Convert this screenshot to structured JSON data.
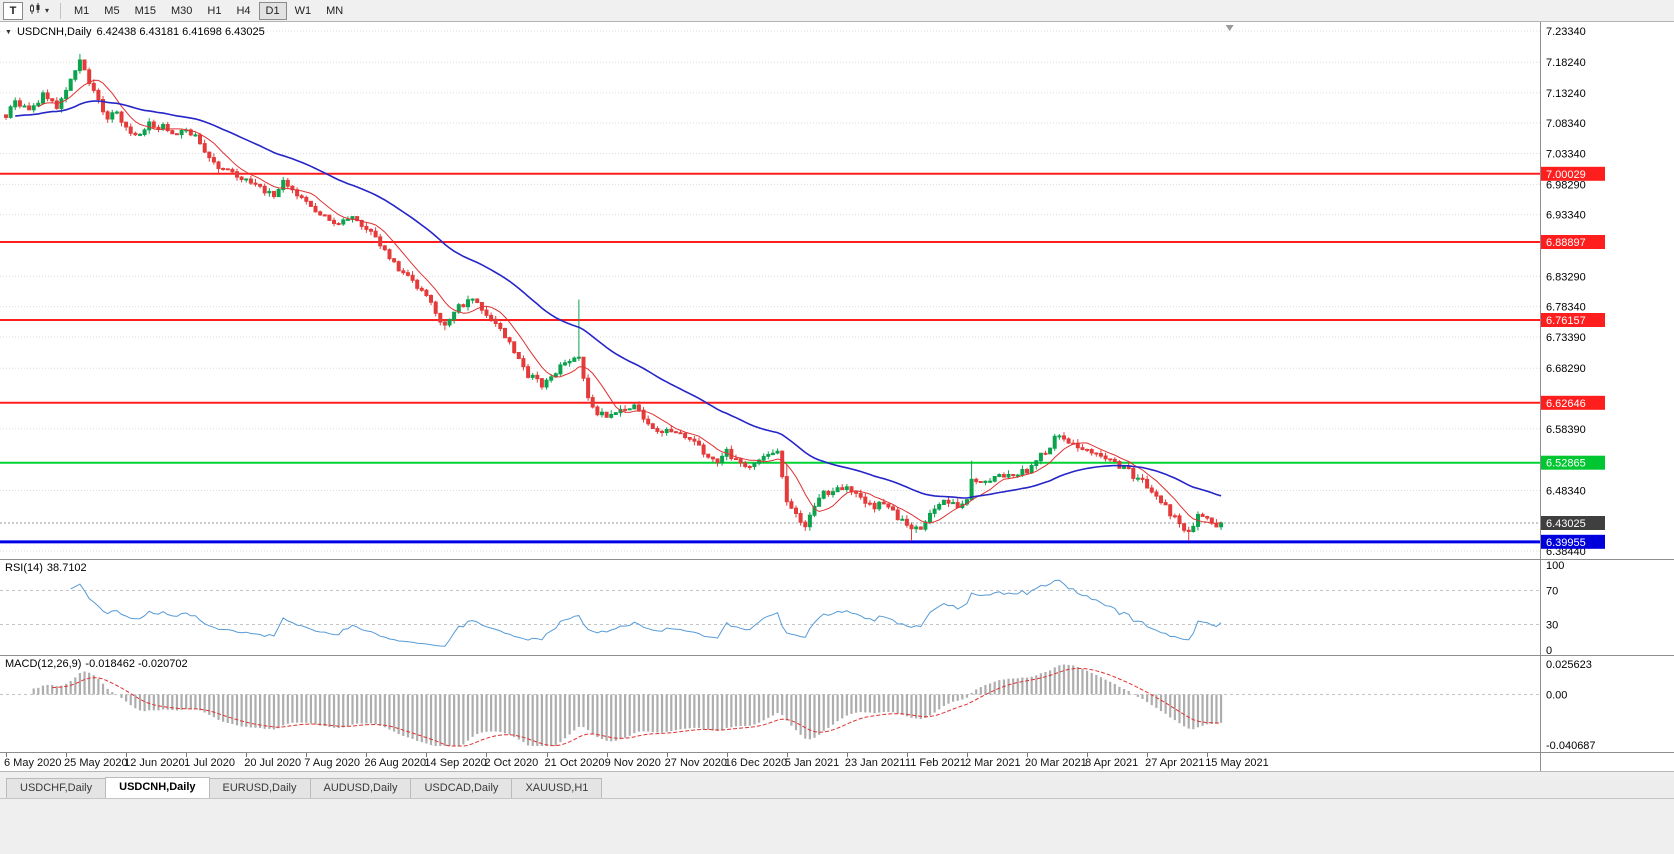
{
  "icons": {
    "collapse_triangle": "▼",
    "dropdown_caret": "▾"
  },
  "toolbar": {
    "handle_label": "T",
    "timeframes": [
      "M1",
      "M5",
      "M15",
      "M30",
      "H1",
      "H4",
      "D1",
      "W1",
      "MN"
    ],
    "active_timeframe": "D1"
  },
  "chart": {
    "title_symbol": "USDCNH,Daily",
    "ohlc_text": "6.42438 6.43181 6.41698 6.43025",
    "price_scale": [
      "7.23340",
      "7.18240",
      "7.13240",
      "7.08340",
      "7.03340",
      "6.98290",
      "6.93340",
      "6.83290",
      "6.78340",
      "6.73390",
      "6.68290",
      "6.58390",
      "6.48340",
      "6.38440"
    ],
    "price_tags": [
      {
        "value": "7.00029",
        "bg": "#FF1E1E"
      },
      {
        "value": "6.88897",
        "bg": "#FF1E1E"
      },
      {
        "value": "6.76157",
        "bg": "#FF1E1E"
      },
      {
        "value": "6.62646",
        "bg": "#FF1E1E"
      },
      {
        "value": "6.52865",
        "bg": "#00C632"
      },
      {
        "value": "6.43025",
        "bg": "#3F3F3F"
      },
      {
        "value": "6.39955",
        "bg": "#0000DC"
      }
    ]
  },
  "chart_data": {
    "type": "candlestick",
    "symbol": "USDCNH",
    "period": "Daily",
    "x_labels": [
      "6 May 2020",
      "25 May 2020",
      "12 Jun 2020",
      "1 Jul 2020",
      "20 Jul 2020",
      "7 Aug 2020",
      "26 Aug 2020",
      "14 Sep 2020",
      "2 Oct 2020",
      "21 Oct 2020",
      "9 Nov 2020",
      "27 Nov 2020",
      "16 Dec 2020",
      "5 Jan 2021",
      "23 Jan 2021",
      "11 Feb 2021",
      "2 Mar 2021",
      "20 Mar 2021",
      "8 Apr 2021",
      "27 Apr 2021",
      "15 May 2021"
    ],
    "label_step": 13,
    "candle_count": 264,
    "price_axis": {
      "max": 7.248,
      "min": 6.3715
    },
    "close_anchors": [
      [
        0,
        7.095
      ],
      [
        2,
        7.118
      ],
      [
        5,
        7.1
      ],
      [
        8,
        7.128
      ],
      [
        11,
        7.11
      ],
      [
        13,
        7.138
      ],
      [
        16,
        7.188
      ],
      [
        18,
        7.15
      ],
      [
        20,
        7.118
      ],
      [
        22,
        7.09
      ],
      [
        24,
        7.1
      ],
      [
        26,
        7.075
      ],
      [
        28,
        7.062
      ],
      [
        31,
        7.082
      ],
      [
        34,
        7.076
      ],
      [
        37,
        7.066
      ],
      [
        39,
        7.072
      ],
      [
        41,
        7.06
      ],
      [
        43,
        7.032
      ],
      [
        46,
        7.012
      ],
      [
        49,
        7.002
      ],
      [
        52,
        6.99
      ],
      [
        55,
        6.976
      ],
      [
        58,
        6.966
      ],
      [
        60,
        6.986
      ],
      [
        62,
        6.972
      ],
      [
        65,
        6.952
      ],
      [
        68,
        6.936
      ],
      [
        71,
        6.92
      ],
      [
        74,
        6.93
      ],
      [
        78,
        6.912
      ],
      [
        80,
        6.896
      ],
      [
        83,
        6.866
      ],
      [
        85,
        6.846
      ],
      [
        88,
        6.822
      ],
      [
        91,
        6.8
      ],
      [
        93,
        6.772
      ],
      [
        95,
        6.752
      ],
      [
        98,
        6.782
      ],
      [
        101,
        6.796
      ],
      [
        104,
        6.772
      ],
      [
        107,
        6.746
      ],
      [
        110,
        6.712
      ],
      [
        113,
        6.672
      ],
      [
        116,
        6.656
      ],
      [
        119,
        6.676
      ],
      [
        121,
        6.692
      ],
      [
        124,
        6.7
      ],
      [
        126,
        6.632
      ],
      [
        128,
        6.612
      ],
      [
        130,
        6.602
      ],
      [
        133,
        6.617
      ],
      [
        136,
        6.622
      ],
      [
        139,
        6.592
      ],
      [
        141,
        6.577
      ],
      [
        143,
        6.582
      ],
      [
        146,
        6.572
      ],
      [
        149,
        6.566
      ],
      [
        152,
        6.537
      ],
      [
        154,
        6.527
      ],
      [
        156,
        6.547
      ],
      [
        158,
        6.532
      ],
      [
        161,
        6.522
      ],
      [
        164,
        6.537
      ],
      [
        167,
        6.547
      ],
      [
        169,
        6.462
      ],
      [
        171,
        6.442
      ],
      [
        173,
        6.427
      ],
      [
        175,
        6.457
      ],
      [
        177,
        6.477
      ],
      [
        179,
        6.482
      ],
      [
        182,
        6.492
      ],
      [
        184,
        6.477
      ],
      [
        186,
        6.467
      ],
      [
        188,
        6.457
      ],
      [
        190,
        6.462
      ],
      [
        192,
        6.447
      ],
      [
        194,
        6.432
      ],
      [
        196,
        6.417
      ],
      [
        198,
        6.422
      ],
      [
        200,
        6.442
      ],
      [
        202,
        6.462
      ],
      [
        204,
        6.467
      ],
      [
        206,
        6.457
      ],
      [
        208,
        6.472
      ],
      [
        209,
        6.502
      ],
      [
        211,
        6.492
      ],
      [
        213,
        6.502
      ],
      [
        215,
        6.512
      ],
      [
        217,
        6.507
      ],
      [
        219,
        6.512
      ],
      [
        221,
        6.517
      ],
      [
        223,
        6.532
      ],
      [
        225,
        6.547
      ],
      [
        227,
        6.567
      ],
      [
        229,
        6.572
      ],
      [
        231,
        6.557
      ],
      [
        234,
        6.552
      ],
      [
        236,
        6.542
      ],
      [
        238,
        6.532
      ],
      [
        240,
        6.527
      ],
      [
        242,
        6.522
      ],
      [
        244,
        6.507
      ],
      [
        246,
        6.497
      ],
      [
        248,
        6.482
      ],
      [
        250,
        6.467
      ],
      [
        252,
        6.447
      ],
      [
        254,
        6.427
      ],
      [
        256,
        6.412
      ],
      [
        258,
        6.441
      ],
      [
        260,
        6.436
      ],
      [
        262,
        6.424
      ],
      [
        263,
        6.43025
      ]
    ],
    "wick_overrides": [
      {
        "i": 16,
        "high": 7.196
      },
      {
        "i": 95,
        "low": 6.745
      },
      {
        "i": 124,
        "high": 6.795
      },
      {
        "i": 169,
        "high": 6.525
      },
      {
        "i": 196,
        "low": 6.401
      },
      {
        "i": 209,
        "high": 6.532
      },
      {
        "i": 256,
        "low": 6.402
      }
    ],
    "hlines": [
      {
        "price": 7.00029,
        "color": "#FF1E1E",
        "width": 2
      },
      {
        "price": 6.88897,
        "color": "#FF1E1E",
        "width": 2
      },
      {
        "price": 6.76157,
        "color": "#FF1E1E",
        "width": 2
      },
      {
        "price": 6.62646,
        "color": "#FF1E1E",
        "width": 2
      },
      {
        "price": 6.52865,
        "color": "#00D435",
        "width": 2
      },
      {
        "price": 6.39955,
        "color": "#0000E6",
        "width": 3
      }
    ],
    "current_price": 6.43025,
    "rsi": {
      "label": "RSI(14)",
      "value": "38.7102",
      "period": 14,
      "levels": [
        "100",
        "70",
        "30",
        "0"
      ],
      "dashed_levels": [
        70,
        30
      ]
    },
    "macd": {
      "label": "MACD(12,26,9)",
      "value_text": "-0.018462 -0.020702",
      "scale_labels": [
        "0.025623",
        "0.00",
        "-0.040687"
      ],
      "range": {
        "max": 0.025623,
        "min": -0.040687
      }
    }
  },
  "bottom_tabs": [
    {
      "label": "USDCHF,Daily",
      "active": false
    },
    {
      "label": "USDCNH,Daily",
      "active": true
    },
    {
      "label": "EURUSD,Daily",
      "active": false
    },
    {
      "label": "AUDUSD,Daily",
      "active": false
    },
    {
      "label": "USDCAD,Daily",
      "active": false
    },
    {
      "label": "XAUUSD,H1",
      "active": false
    }
  ],
  "colors": {
    "bull": "#0CA24E",
    "bear": "#E43B3B",
    "ma_fast": "#E03232",
    "ma_slow": "#2525C8",
    "rsi_line": "#569AD6",
    "macd_hist": "#ADADAD",
    "macd_signal": "#E03232",
    "grid": "#DCDCDC",
    "current_line": "#9A9A9A"
  }
}
